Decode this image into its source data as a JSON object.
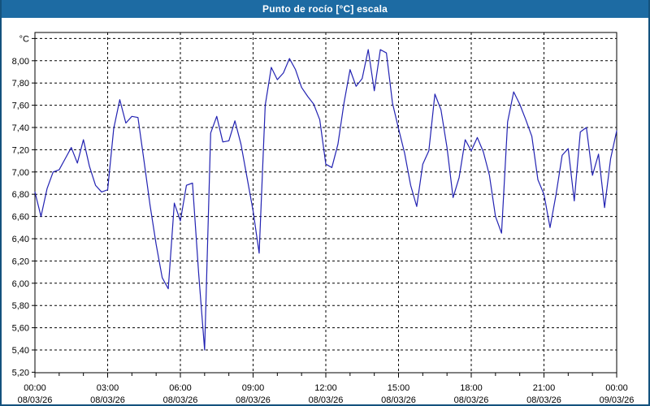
{
  "window": {
    "title": "Punto de rocío [°C] escala"
  },
  "colors": {
    "title_bar_bg": "#1d6ba3",
    "title_text": "#ffffff",
    "window_border": "#14527d",
    "plot_bg": "#ffffff",
    "grid": "#000000",
    "axis": "#000000",
    "line": "#2222b2",
    "label_text": "#000000"
  },
  "y_axis": {
    "unit_label": "°C",
    "tick_labels": [
      "°C",
      "8,00",
      "7,80",
      "7,60",
      "7,40",
      "7,20",
      "7,00",
      "6,80",
      "6,60",
      "6,40",
      "6,20",
      "6,00",
      "5,80",
      "5,60",
      "5,40",
      "5,20"
    ],
    "min": 5.2,
    "max": 8.2,
    "step": 0.2
  },
  "x_axis": {
    "labels": [
      {
        "time": "00:00",
        "date": "08/03/26"
      },
      {
        "time": "03:00",
        "date": "08/03/26"
      },
      {
        "time": "06:00",
        "date": "08/03/26"
      },
      {
        "time": "09:00",
        "date": "08/03/26"
      },
      {
        "time": "12:00",
        "date": "08/03/26"
      },
      {
        "time": "15:00",
        "date": "08/03/26"
      },
      {
        "time": "18:00",
        "date": "08/03/26"
      },
      {
        "time": "21:00",
        "date": "08/03/26"
      },
      {
        "time": "00:00",
        "date": "09/03/26"
      }
    ]
  },
  "chart_data": {
    "type": "line",
    "title": "Punto de rocío [°C] escala",
    "name": "Punto de rocío",
    "xlabel": "",
    "ylabel": "°C",
    "ylim": [
      5.2,
      8.2
    ],
    "grid": true,
    "legend": false,
    "x_start": "00:00",
    "x_interval_minutes": 15,
    "x_total_hours": 24,
    "x_tick_labels": [
      "00:00",
      "03:00",
      "06:00",
      "09:00",
      "12:00",
      "15:00",
      "18:00",
      "21:00",
      "00:00"
    ],
    "x_tick_dates": [
      "08/03/26",
      "08/03/26",
      "08/03/26",
      "08/03/26",
      "08/03/26",
      "08/03/26",
      "08/03/26",
      "08/03/26",
      "09/03/26"
    ],
    "values": [
      6.82,
      6.6,
      6.85,
      7.0,
      7.02,
      7.12,
      7.22,
      7.08,
      7.29,
      7.05,
      6.88,
      6.82,
      6.84,
      7.39,
      7.65,
      7.44,
      7.5,
      7.49,
      7.1,
      6.7,
      6.35,
      6.05,
      5.95,
      6.72,
      6.56,
      6.88,
      6.9,
      6.1,
      5.4,
      7.35,
      7.5,
      7.27,
      7.28,
      7.46,
      7.25,
      6.95,
      6.65,
      6.27,
      7.6,
      7.94,
      7.83,
      7.89,
      8.02,
      7.92,
      7.76,
      7.68,
      7.61,
      7.47,
      7.07,
      7.04,
      7.25,
      7.62,
      7.92,
      7.77,
      7.84,
      8.1,
      7.73,
      8.1,
      8.07,
      7.62,
      7.39,
      7.17,
      6.88,
      6.69,
      7.07,
      7.19,
      7.7,
      7.56,
      7.22,
      6.77,
      6.95,
      7.29,
      7.19,
      7.31,
      7.18,
      6.97,
      6.6,
      6.45,
      7.45,
      7.72,
      7.61,
      7.47,
      7.32,
      6.93,
      6.8,
      6.5,
      6.8,
      7.15,
      7.21,
      6.74,
      7.36,
      7.4,
      6.97,
      7.16,
      6.68,
      7.12,
      7.37
    ]
  }
}
